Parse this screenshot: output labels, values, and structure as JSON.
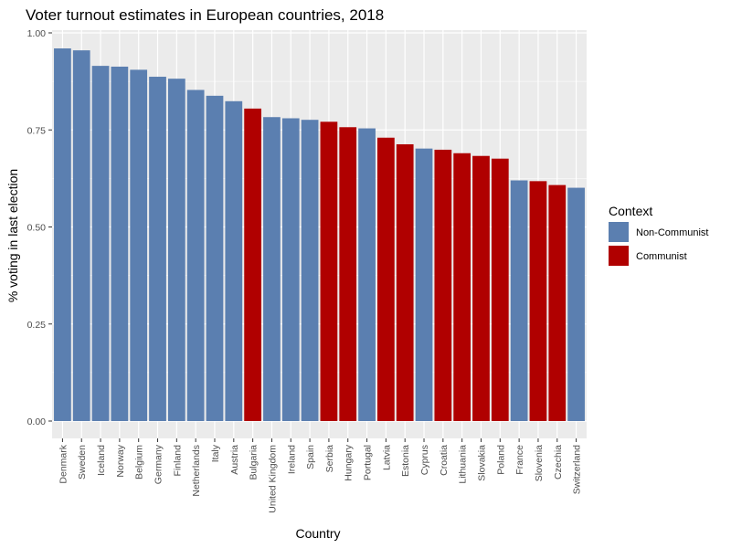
{
  "chart_data": {
    "type": "bar",
    "title": "Voter turnout estimates in European countries, 2018",
    "xlabel": "Country",
    "ylabel": "% voting in last election",
    "ylim": [
      0,
      1
    ],
    "yticks": [
      "0.00",
      "0.25",
      "0.50",
      "0.75",
      "1.00"
    ],
    "grid": true,
    "legend": {
      "title": "Context",
      "placement": "right",
      "entries": [
        {
          "name": "Non-Communist",
          "color": "#5b7fb0"
        },
        {
          "name": "Communist",
          "color": "#b00000"
        }
      ]
    },
    "categories": [
      "Denmark",
      "Sweden",
      "Iceland",
      "Norway",
      "Belgium",
      "Germany",
      "Finland",
      "Netherlands",
      "Italy",
      "Austria",
      "Bulgaria",
      "United Kingdom",
      "Ireland",
      "Spain",
      "Serbia",
      "Hungary",
      "Portugal",
      "Latvia",
      "Estonia",
      "Cyprus",
      "Croatia",
      "Lithuania",
      "Slovakia",
      "Poland",
      "France",
      "Slovenia",
      "Czechia",
      "Switzerland"
    ],
    "values": [
      0.96,
      0.955,
      0.915,
      0.913,
      0.905,
      0.887,
      0.882,
      0.853,
      0.838,
      0.824,
      0.805,
      0.783,
      0.78,
      0.776,
      0.771,
      0.757,
      0.754,
      0.73,
      0.713,
      0.702,
      0.699,
      0.69,
      0.683,
      0.676,
      0.62,
      0.618,
      0.608,
      0.601
    ],
    "context": [
      "Non-Communist",
      "Non-Communist",
      "Non-Communist",
      "Non-Communist",
      "Non-Communist",
      "Non-Communist",
      "Non-Communist",
      "Non-Communist",
      "Non-Communist",
      "Non-Communist",
      "Communist",
      "Non-Communist",
      "Non-Communist",
      "Non-Communist",
      "Communist",
      "Communist",
      "Non-Communist",
      "Communist",
      "Communist",
      "Non-Communist",
      "Communist",
      "Communist",
      "Communist",
      "Communist",
      "Non-Communist",
      "Communist",
      "Communist",
      "Non-Communist"
    ]
  }
}
